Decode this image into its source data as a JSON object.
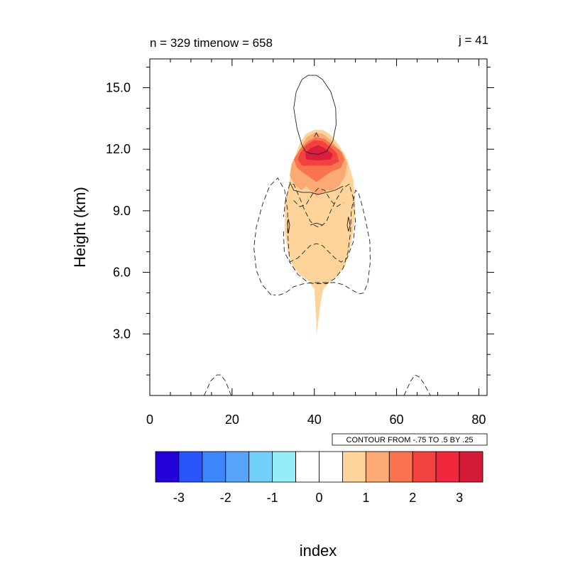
{
  "chart_data": {
    "type": "contour",
    "title_left": "n = 329 timenow = 658",
    "title_right": "j = 41",
    "xlabel": "index",
    "ylabel": "Height (km)",
    "xlim": [
      0,
      82
    ],
    "ylim": [
      0,
      16.4
    ],
    "x_ticks": [
      0,
      20,
      40,
      60,
      80
    ],
    "x_tick_labels": [
      "0",
      "20",
      "40",
      "60",
      "80"
    ],
    "y_ticks": [
      3,
      6,
      9,
      12,
      15
    ],
    "y_tick_labels": [
      "3.0",
      "6.0",
      "9.0",
      "12.0",
      "15.0"
    ],
    "contour_info": "CONTOUR FROM -.75 TO .5 BY .25",
    "filled_levels": [
      {
        "level": 0.5,
        "color": "#fed49a",
        "outline": [
          [
            40.5,
            2.9
          ],
          [
            41.5,
            4.5
          ],
          [
            42.2,
            5.2
          ],
          [
            44,
            5.6
          ],
          [
            45.5,
            5.8
          ],
          [
            47.5,
            6.3
          ],
          [
            48.5,
            7
          ],
          [
            49.5,
            8
          ],
          [
            50,
            9.3
          ],
          [
            49.5,
            10.5
          ],
          [
            48,
            11.5
          ],
          [
            46,
            12.2
          ],
          [
            44,
            12.7
          ],
          [
            42,
            12.95
          ],
          [
            40,
            12.95
          ],
          [
            38,
            12.75
          ],
          [
            36.5,
            12.3
          ],
          [
            35,
            11.5
          ],
          [
            34,
            10.5
          ],
          [
            32.8,
            9.3
          ],
          [
            32.8,
            8
          ],
          [
            33.5,
            7
          ],
          [
            35,
            6.2
          ],
          [
            37,
            5.8
          ],
          [
            38.5,
            5.6
          ],
          [
            40,
            5.2
          ],
          [
            40.5,
            3.5
          ]
        ]
      },
      {
        "level": 1.0,
        "color": "#fcaa73",
        "outline": [
          [
            38,
            10.2
          ],
          [
            40.5,
            9.7
          ],
          [
            43,
            10.0
          ],
          [
            44.5,
            10.0
          ],
          [
            46,
            10.2
          ],
          [
            47.5,
            10.7
          ],
          [
            48,
            11.3
          ],
          [
            47,
            11.8
          ],
          [
            45.5,
            12.1
          ],
          [
            44,
            12.45
          ],
          [
            42,
            12.75
          ],
          [
            40,
            12.8
          ],
          [
            38,
            12.55
          ],
          [
            36.5,
            12.0
          ],
          [
            34.5,
            11.3
          ],
          [
            34,
            10.7
          ],
          [
            35.5,
            10.2
          ],
          [
            37,
            10.0
          ]
        ]
      },
      {
        "level": 1.5,
        "color": "#f9734f",
        "outline": [
          [
            37,
            10.9
          ],
          [
            40.5,
            10.4
          ],
          [
            44,
            10.9
          ],
          [
            46.5,
            11.1
          ],
          [
            47.3,
            11.5
          ],
          [
            46.5,
            11.9
          ],
          [
            44.5,
            12.2
          ],
          [
            42.5,
            12.5
          ],
          [
            40.5,
            12.6
          ],
          [
            38.5,
            12.4
          ],
          [
            36.5,
            12.0
          ],
          [
            35,
            11.5
          ],
          [
            35.8,
            11.1
          ]
        ]
      },
      {
        "level": 2.0,
        "color": "#f0433f",
        "outline": [
          [
            37,
            11.2
          ],
          [
            40.5,
            11.2
          ],
          [
            44,
            11.2
          ],
          [
            46,
            11.4
          ],
          [
            45.5,
            11.8
          ],
          [
            44,
            12.1
          ],
          [
            42,
            12.4
          ],
          [
            40,
            12.45
          ],
          [
            38,
            12.2
          ],
          [
            36.5,
            11.8
          ],
          [
            36,
            11.5
          ]
        ]
      },
      {
        "level": 2.5,
        "color": "#dc1e3c",
        "outline": [
          [
            38,
            11.5
          ],
          [
            41,
            11.45
          ],
          [
            44,
            11.5
          ],
          [
            44.5,
            11.75
          ],
          [
            43,
            12.0
          ],
          [
            41,
            12.2
          ],
          [
            39,
            12.05
          ],
          [
            37.8,
            11.8
          ]
        ]
      }
    ],
    "contour_lines": [
      {
        "style": "solid",
        "points": [
          [
            37,
            12.2
          ],
          [
            35.8,
            13
          ],
          [
            35,
            14
          ],
          [
            35.6,
            14.8
          ],
          [
            37,
            15.4
          ],
          [
            38.5,
            15.6
          ],
          [
            40.5,
            15.6
          ],
          [
            42,
            15.4
          ],
          [
            44,
            14.8
          ],
          [
            45.2,
            14
          ],
          [
            45.3,
            13.2
          ],
          [
            44.5,
            12.4
          ],
          [
            43,
            11.9
          ],
          [
            41,
            11.75
          ],
          [
            39,
            11.8
          ],
          [
            37.8,
            11.9
          ],
          [
            37,
            12.2
          ]
        ]
      },
      {
        "style": "solid",
        "points": [
          [
            40,
            12.6
          ],
          [
            40.5,
            12.8
          ],
          [
            41,
            12.6
          ]
        ]
      },
      {
        "style": "solid",
        "points": [
          [
            34,
            10.4
          ],
          [
            35,
            10.0
          ],
          [
            37,
            9.9
          ],
          [
            39,
            9.9
          ],
          [
            41,
            9.8
          ],
          [
            43,
            9.9
          ],
          [
            45,
            10.0
          ],
          [
            47,
            10.2
          ]
        ]
      },
      {
        "style": "solid",
        "points": [
          [
            33.5,
            8.3
          ],
          [
            33.7,
            7.9
          ],
          [
            34,
            8.3
          ],
          [
            33.7,
            8.6
          ],
          [
            33.5,
            8.3
          ]
        ]
      },
      {
        "style": "solid",
        "points": [
          [
            48,
            8.3
          ],
          [
            48.3,
            8.0
          ],
          [
            48.7,
            8.3
          ],
          [
            48.3,
            8.7
          ],
          [
            48,
            8.3
          ]
        ]
      },
      {
        "style": "solid",
        "points": [
          [
            39,
            8.3
          ],
          [
            40.5,
            8.4
          ],
          [
            42,
            8.3
          ]
        ]
      },
      {
        "style": "dashed",
        "points": [
          [
            29.5,
            4.9
          ],
          [
            27.3,
            5.4
          ],
          [
            25.9,
            6.1
          ],
          [
            25.3,
            7.2
          ],
          [
            25.9,
            8.2
          ],
          [
            27.4,
            9.3
          ],
          [
            29.1,
            10.2
          ],
          [
            31.1,
            10.6
          ],
          [
            32.8,
            10.0
          ],
          [
            33.5,
            9.0
          ],
          [
            33.5,
            8.0
          ],
          [
            34,
            6.5
          ],
          [
            36,
            5.9
          ],
          [
            38.5,
            5.5
          ],
          [
            40,
            5.45
          ],
          [
            43,
            5.45
          ],
          [
            45,
            5.7
          ],
          [
            47,
            6.2
          ],
          [
            48.2,
            7
          ],
          [
            48.8,
            8
          ],
          [
            49,
            9
          ],
          [
            50,
            10
          ],
          [
            50.7,
            9.9
          ],
          [
            51.7,
            9.2
          ],
          [
            52.5,
            8.5
          ],
          [
            53.5,
            7.5
          ],
          [
            53.6,
            6.5
          ],
          [
            53,
            5.5
          ],
          [
            52,
            5.0
          ],
          [
            51,
            4.95
          ],
          [
            49.5,
            5.1
          ],
          [
            47,
            5.4
          ],
          [
            45,
            5.5
          ],
          [
            43,
            5.5
          ],
          [
            40,
            5.5
          ],
          [
            37.5,
            5.45
          ],
          [
            35,
            5.3
          ],
          [
            33,
            5.0
          ],
          [
            31.5,
            4.9
          ],
          [
            30,
            4.9
          ]
        ]
      },
      {
        "style": "dashed",
        "points": [
          [
            32.5,
            8.0
          ],
          [
            32.7,
            7.0
          ],
          [
            34,
            6.5
          ],
          [
            36,
            6.7
          ],
          [
            37.5,
            7.0
          ],
          [
            39,
            7.3
          ],
          [
            40.5,
            7.4
          ],
          [
            42,
            7.3
          ],
          [
            43.5,
            7.0
          ],
          [
            45,
            6.7
          ],
          [
            46.5,
            6.5
          ],
          [
            48,
            6.7
          ],
          [
            49.5,
            7.5
          ],
          [
            50,
            8.5
          ],
          [
            49.5,
            9.6
          ],
          [
            48.5,
            10.3
          ],
          [
            47,
            10.1
          ],
          [
            45.5,
            9.6
          ],
          [
            44,
            9.0
          ],
          [
            43,
            8.5
          ],
          [
            42,
            8.3
          ],
          [
            41,
            8.2
          ],
          [
            40,
            8.3
          ],
          [
            39,
            8.5
          ],
          [
            37.7,
            9.0
          ],
          [
            36.5,
            9.6
          ],
          [
            35,
            10.3
          ],
          [
            34,
            10.3
          ],
          [
            33,
            9.5
          ],
          [
            32.5,
            8.7
          ]
        ]
      },
      {
        "style": "dashed",
        "points": [
          [
            35,
            9.5
          ],
          [
            36.5,
            9.2
          ],
          [
            38,
            9.3
          ],
          [
            39.5,
            9.8
          ],
          [
            41,
            10.1
          ],
          [
            42.5,
            10.0
          ],
          [
            44,
            9.5
          ],
          [
            45.5,
            9.2
          ],
          [
            47,
            9.4
          ]
        ]
      },
      {
        "style": "dashed",
        "points": [
          [
            13.2,
            0
          ],
          [
            14.8,
            0.7
          ],
          [
            16.3,
            1.0
          ],
          [
            17.3,
            1.0
          ],
          [
            18.4,
            0.7
          ],
          [
            19.8,
            0
          ]
        ]
      },
      {
        "style": "dashed",
        "points": [
          [
            61.8,
            0
          ],
          [
            63.4,
            0.7
          ],
          [
            64.5,
            1.0
          ],
          [
            65.5,
            0.9
          ],
          [
            66.6,
            0.6
          ],
          [
            68.2,
            0
          ]
        ]
      }
    ],
    "colorbar": {
      "colors": [
        "#2300d8",
        "#2a54fb",
        "#3c86fb",
        "#58a4fb",
        "#72d0fb",
        "#97ecfb",
        "#ffffff",
        "#ffffff",
        "#fed49a",
        "#fcaa73",
        "#f9734f",
        "#f0433f",
        "#f1273e",
        "#d41b37"
      ],
      "tick_labels": [
        "-3",
        "-2",
        "-1",
        "0",
        "1",
        "2",
        "3"
      ]
    }
  }
}
